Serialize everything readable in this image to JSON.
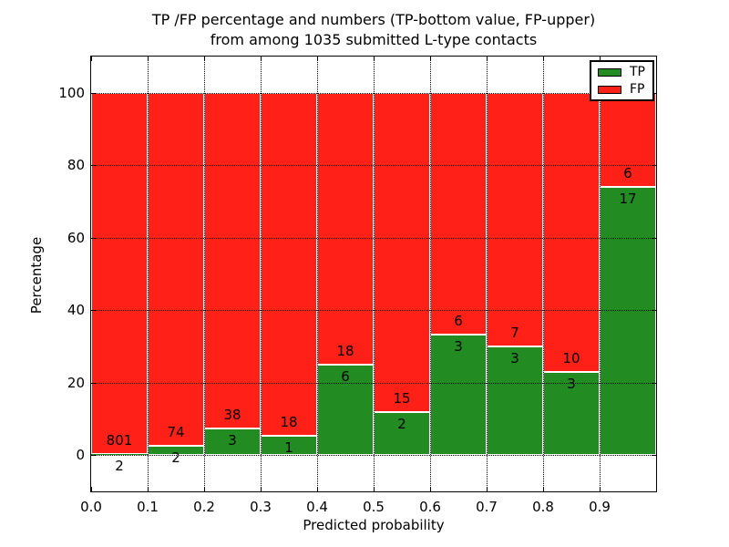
{
  "title": {
    "line1": "TP /FP percentage and numbers (TP-bottom value, FP-upper)",
    "line2": "from among 1035 submitted L-type contacts"
  },
  "axes": {
    "xlabel": "Predicted probability",
    "ylabel": "Percentage",
    "x_tick_labels": [
      "0.0",
      "0.1",
      "0.2",
      "0.3",
      "0.4",
      "0.5",
      "0.6",
      "0.7",
      "0.8",
      "0.9"
    ],
    "y_tick_labels": [
      "0",
      "20",
      "40",
      "60",
      "80",
      "100"
    ]
  },
  "legend": {
    "items": [
      {
        "label": "TP",
        "color": "#228b22"
      },
      {
        "label": "FP",
        "color": "#ff2017"
      }
    ]
  },
  "chart_data": {
    "type": "bar",
    "stacked": true,
    "normalized_to_percent": true,
    "title": "TP /FP percentage and numbers (TP-bottom value, FP-upper) from among 1035 submitted L-type contacts",
    "xlabel": "Predicted probability",
    "ylabel": "Percentage",
    "total_submitted": 1035,
    "bin_width": 0.1,
    "bin_starts": [
      0.0,
      0.1,
      0.2,
      0.3,
      0.4,
      0.5,
      0.6,
      0.7,
      0.8,
      0.9
    ],
    "series": [
      {
        "name": "TP",
        "color": "#228b22",
        "counts": [
          2,
          2,
          3,
          1,
          6,
          2,
          3,
          3,
          3,
          17
        ]
      },
      {
        "name": "FP",
        "color": "#ff2017",
        "counts": [
          801,
          74,
          38,
          18,
          18,
          15,
          6,
          7,
          10,
          6
        ]
      }
    ],
    "tp_percent": [
      0.25,
      2.63,
      7.32,
      5.26,
      25.0,
      11.76,
      33.33,
      30.0,
      23.08,
      73.91
    ],
    "xlim": [
      0.0,
      1.0
    ],
    "ylim": [
      -10,
      110
    ],
    "x_ticks": [
      0.0,
      0.1,
      0.2,
      0.3,
      0.4,
      0.5,
      0.6,
      0.7,
      0.8,
      0.9
    ],
    "y_ticks": [
      0,
      20,
      40,
      60,
      80,
      100
    ],
    "grid": "dotted",
    "legend_position": "upper right"
  }
}
